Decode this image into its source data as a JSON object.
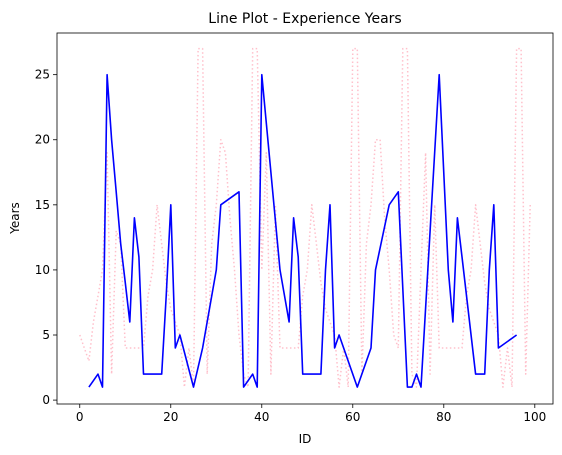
{
  "chart_data": {
    "type": "line",
    "title": "Line Plot - Experience Years",
    "xlabel": "ID",
    "ylabel": "Years",
    "xlim": [
      -5,
      104
    ],
    "ylim": [
      -0.3,
      28.2
    ],
    "xticks": [
      0,
      20,
      40,
      60,
      80,
      100
    ],
    "yticks": [
      0,
      5,
      10,
      15,
      20,
      25
    ],
    "grid": false,
    "legend": "none",
    "series": [
      {
        "color": "#0000ff",
        "style": "solid",
        "x": [
          2,
          4,
          5,
          6,
          7,
          8,
          9,
          10,
          11,
          12,
          13,
          14,
          15,
          16,
          17,
          18,
          19,
          20,
          21,
          22,
          25,
          27,
          30,
          31,
          35,
          36,
          38,
          39,
          40,
          44,
          46,
          47,
          48,
          49,
          53,
          54,
          55,
          56,
          57,
          61,
          64,
          65,
          68,
          70,
          72,
          73,
          74,
          75,
          79,
          81,
          82,
          83,
          84,
          87,
          89,
          90,
          91,
          92,
          96
        ],
        "y": [
          1,
          2,
          1,
          25,
          20,
          16,
          12,
          9,
          6,
          14,
          11,
          2,
          2,
          2,
          2,
          2,
          8,
          15,
          4,
          5,
          1,
          4,
          10,
          15,
          16,
          1,
          2,
          1,
          25,
          10,
          6,
          14,
          11,
          2,
          2,
          10,
          15,
          4,
          5,
          1,
          4,
          10,
          15,
          16,
          1,
          1,
          2,
          1,
          25,
          10,
          6,
          14,
          11,
          2,
          2,
          10,
          15,
          4,
          5
        ]
      },
      {
        "color": "#ffc0cb",
        "style": "dotted",
        "x": [
          0,
          1,
          2,
          3,
          4,
          5,
          6,
          7,
          8,
          9,
          10,
          11,
          12,
          13,
          14,
          15,
          16,
          17,
          18,
          19,
          20,
          21,
          22,
          23,
          24,
          25,
          26,
          27,
          28,
          29,
          30,
          31,
          32,
          33,
          34,
          35,
          36,
          37,
          38,
          39,
          40,
          41,
          42,
          43,
          44,
          45,
          46,
          47,
          48,
          49,
          50,
          51,
          52,
          53,
          54,
          55,
          56,
          57,
          58,
          59,
          60,
          61,
          62,
          63,
          64,
          65,
          66,
          67,
          68,
          69,
          70,
          71,
          72,
          73,
          74,
          75,
          76,
          77,
          78,
          79,
          80,
          81,
          82,
          83,
          84,
          85,
          86,
          87,
          88,
          89,
          90,
          91,
          92,
          93,
          94,
          95,
          96,
          97,
          98,
          99
        ],
        "y": [
          5,
          4,
          3,
          6,
          8,
          10,
          19,
          2,
          13,
          12,
          4,
          4,
          4,
          4,
          4,
          8,
          10,
          15,
          12,
          9,
          7,
          6,
          5,
          1,
          4,
          1,
          27,
          27,
          2,
          12,
          15,
          20,
          19,
          14,
          10,
          5,
          2,
          1,
          27,
          27,
          10,
          19,
          2,
          15,
          4,
          4,
          4,
          4,
          4,
          8,
          10,
          15,
          12,
          9,
          7,
          6,
          5,
          1,
          4,
          1,
          27,
          27,
          2,
          12,
          15,
          20,
          20,
          14,
          10,
          5,
          4,
          27,
          27,
          2,
          1,
          10,
          19,
          2,
          15,
          4,
          4,
          4,
          4,
          4,
          4,
          8,
          10,
          15,
          12,
          9,
          7,
          6,
          5,
          1,
          4,
          1,
          27,
          27,
          2,
          15
        ]
      }
    ]
  }
}
